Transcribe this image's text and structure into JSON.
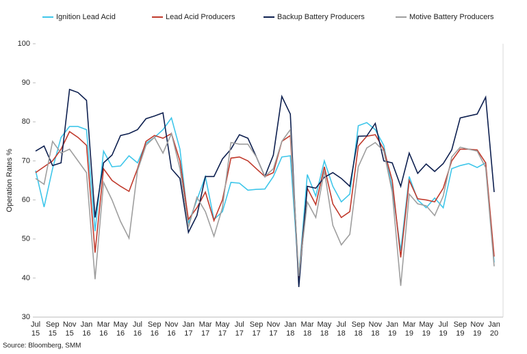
{
  "chart_data": {
    "type": "line",
    "y_label": "Operation Rates %",
    "source": "Source: Bloomberg, SMM",
    "categories": [
      "Jul 15",
      null,
      "Sep 15",
      null,
      "Nov 15",
      null,
      "Jan 16",
      null,
      "Mar 16",
      null,
      "May 16",
      null,
      "Jul 16",
      null,
      "Sep 16",
      null,
      "Nov 16",
      null,
      "Jan 17",
      null,
      "Mar 17",
      null,
      "May 17",
      null,
      "Jul 17",
      null,
      "Sep 17",
      null,
      "Nov 17",
      null,
      "Jan 18",
      null,
      "Mar 18",
      null,
      "May 18",
      null,
      "Jul 18",
      null,
      "Sep 18",
      null,
      "Nov 18",
      null,
      "Jan 19",
      null,
      "Mar 19",
      null,
      "May 19",
      null,
      "Jul 19",
      null,
      "Sep 19",
      null,
      "Nov 19",
      null,
      "Jan 20"
    ],
    "series": [
      {
        "name": "Ignition Lead Acid",
        "color": "#3ec6ea",
        "values": [
          67.5,
          58.2,
          68,
          76,
          78.8,
          78.8,
          78,
          52,
          72.5,
          68.5,
          68.7,
          71.3,
          69.5,
          74.5,
          76,
          78,
          81,
          73,
          54,
          60,
          66,
          55,
          57,
          64.5,
          64.3,
          62.5,
          62.7,
          62.8,
          66,
          71,
          71.3,
          40.5,
          66.5,
          61,
          70,
          63.5,
          59.5,
          61.5,
          79,
          79.8,
          78,
          74,
          63,
          47,
          66,
          60,
          58,
          60.5,
          58,
          68,
          68.8,
          69.3,
          68.3,
          69.5,
          44
        ]
      },
      {
        "name": "Lead Acid Producers",
        "color": "#c0392b",
        "values": [
          67,
          68.5,
          70,
          73,
          77.5,
          76,
          74,
          46.5,
          68,
          65,
          63.5,
          62.2,
          68,
          75,
          76.5,
          75.8,
          77,
          70,
          55,
          58,
          62,
          54.7,
          60,
          70.7,
          71,
          70,
          68,
          66,
          67,
          75,
          76.5,
          40,
          63,
          58.8,
          68.5,
          59,
          55.5,
          57,
          73.8,
          76.3,
          76.7,
          73,
          65,
          45.3,
          65,
          60.3,
          60,
          59.5,
          63,
          70,
          73,
          73,
          72.8,
          69.5,
          45.5
        ]
      },
      {
        "name": "Backup Battery Producers",
        "color": "#0d1f4f",
        "values": [
          72.5,
          73.8,
          68.8,
          69.5,
          88.3,
          87.5,
          85.5,
          55.5,
          69.5,
          71.5,
          76.5,
          77,
          78,
          80.8,
          81.5,
          82.3,
          68,
          65.5,
          51.7,
          56,
          66,
          66,
          70.5,
          73,
          76.7,
          75.8,
          71,
          66,
          71.5,
          86.5,
          82,
          37.7,
          63.5,
          63,
          65.8,
          67,
          65.5,
          63.5,
          76.3,
          76.4,
          79.6,
          70,
          69.5,
          63.5,
          72,
          66.8,
          69.2,
          67.3,
          69.3,
          72.8,
          81,
          81.5,
          82,
          86.3,
          62
        ]
      },
      {
        "name": "Motive Battery Producers",
        "color": "#9e9e9e",
        "values": [
          65.5,
          64,
          75,
          72,
          73,
          70,
          67,
          39.7,
          64.5,
          60,
          54.5,
          50.2,
          67.5,
          74,
          76,
          72,
          77,
          68,
          53,
          60.7,
          57,
          50.7,
          58,
          74.7,
          74.3,
          74.3,
          71,
          66,
          68,
          75,
          78,
          40.5,
          59.5,
          55.5,
          67.5,
          53.5,
          48.5,
          51.2,
          68.5,
          73.3,
          74.7,
          72.5,
          62,
          38,
          61.5,
          59,
          58.5,
          56,
          61,
          71,
          73.5,
          73,
          72.5,
          68.3,
          43
        ]
      }
    ],
    "ylim": [
      30,
      100
    ],
    "yticks": [
      30,
      40,
      50,
      60,
      70,
      80,
      90,
      100
    ],
    "legend": "top"
  }
}
